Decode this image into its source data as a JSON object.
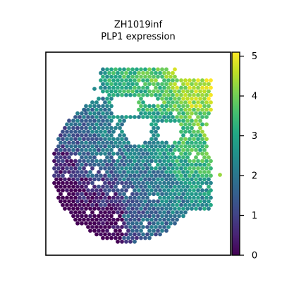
{
  "chart_data": {
    "type": "heatmap",
    "title_line1": "ZH1019inf",
    "title_line2": "PLP1 expression",
    "xlabel": "",
    "ylabel": "",
    "colorbar": {
      "colormap": "viridis",
      "range": [
        0,
        5.1
      ],
      "ticks": [
        {
          "value": 0,
          "label": "0"
        },
        {
          "value": 1,
          "label": "1"
        },
        {
          "value": 2,
          "label": "2"
        },
        {
          "value": 3,
          "label": "3"
        },
        {
          "value": 4,
          "label": "4"
        },
        {
          "value": 5,
          "label": "5"
        }
      ]
    },
    "spot_layout": "hexagonal",
    "value_pattern": "lowest values at lower-left edge, rising toward upper-right edge",
    "colors": {
      "low": "#440154",
      "mid": "#21918c",
      "high": "#fde725",
      "frame": "#000000"
    }
  }
}
